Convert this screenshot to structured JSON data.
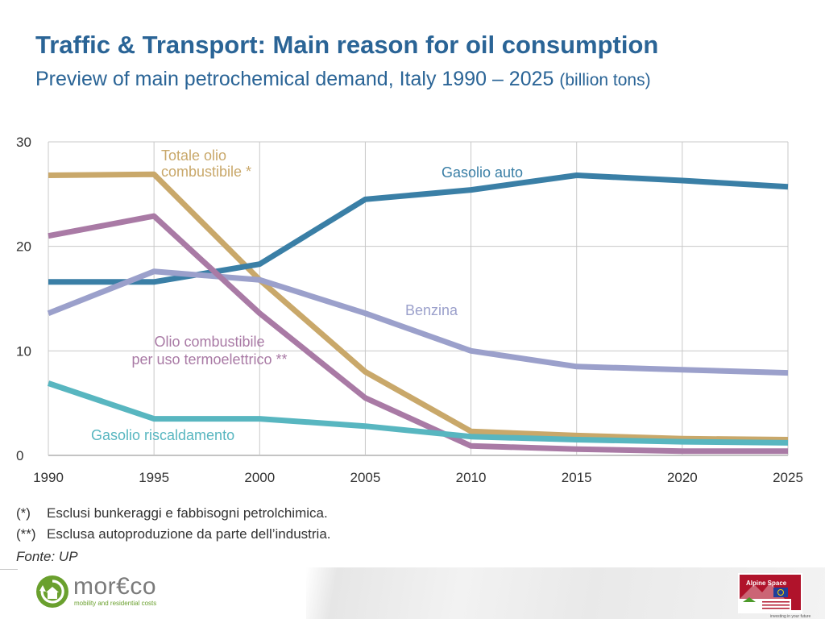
{
  "header": {
    "title": "Traffic & Transport: Main reason for oil consumption",
    "subtitle": "Preview of main petrochemical demand,  Italy 1990 – 2025",
    "unit": "(billion tons)"
  },
  "chart_data": {
    "type": "line",
    "title": "",
    "xlabel": "",
    "ylabel": "",
    "x": [
      1990,
      1995,
      2000,
      2005,
      2010,
      2015,
      2020,
      2025
    ],
    "xlim": [
      1990,
      2025
    ],
    "ylim": [
      0,
      30
    ],
    "yticks": [
      0,
      10,
      20,
      30
    ],
    "grid": true,
    "series": [
      {
        "name": "Totale olio combustibile *",
        "color": "#c9a86a",
        "values": [
          26.8,
          26.9,
          16.8,
          8.0,
          2.3,
          1.9,
          1.6,
          1.5
        ]
      },
      {
        "name": "Gasolio auto",
        "color": "#3a7fa6",
        "values": [
          16.6,
          16.6,
          18.3,
          24.5,
          25.4,
          26.8,
          26.3,
          25.7
        ]
      },
      {
        "name": "Benzina",
        "color": "#9ba0cb",
        "values": [
          13.6,
          17.6,
          16.8,
          13.6,
          10.0,
          8.5,
          8.2,
          7.9
        ]
      },
      {
        "name": "Olio combustibile per uso termoelettrico **",
        "color": "#a97aa5",
        "values": [
          21.0,
          22.9,
          13.6,
          5.5,
          0.9,
          0.6,
          0.4,
          0.4
        ]
      },
      {
        "name": "Gasolio riscaldamento",
        "color": "#58b6c0",
        "values": [
          6.9,
          3.5,
          3.5,
          2.8,
          1.8,
          1.5,
          1.3,
          1.2
        ]
      }
    ],
    "annotations": [
      {
        "lines": [
          "Totale olio",
          "combustibile *"
        ],
        "color": "#c9a86a"
      },
      {
        "lines": [
          "Gasolio auto"
        ],
        "color": "#3a7fa6"
      },
      {
        "lines": [
          "Benzina"
        ],
        "color": "#9ba0cb"
      },
      {
        "lines": [
          "Olio combustibile",
          "per uso termoelettrico **"
        ],
        "color": "#a97aa5"
      },
      {
        "lines": [
          "Gasolio riscaldamento"
        ],
        "color": "#58b6c0"
      }
    ]
  },
  "footnotes": [
    {
      "mark": "(*)",
      "text": "Esclusi bunkeraggi e fabbisogni petrolchimica."
    },
    {
      "mark": "(**)",
      "text": "Esclusa autoproduzione da parte dell’industria."
    }
  ],
  "source": "Fonte: UP",
  "logos": {
    "left_name": "mor€co",
    "left_tagline": "mobility and residential costs",
    "left_icon": "recycle-house-icon",
    "right_name": "Alpine Space",
    "right_icon": "alpine-space-logo-icon",
    "right_sub": "investing in your future"
  }
}
